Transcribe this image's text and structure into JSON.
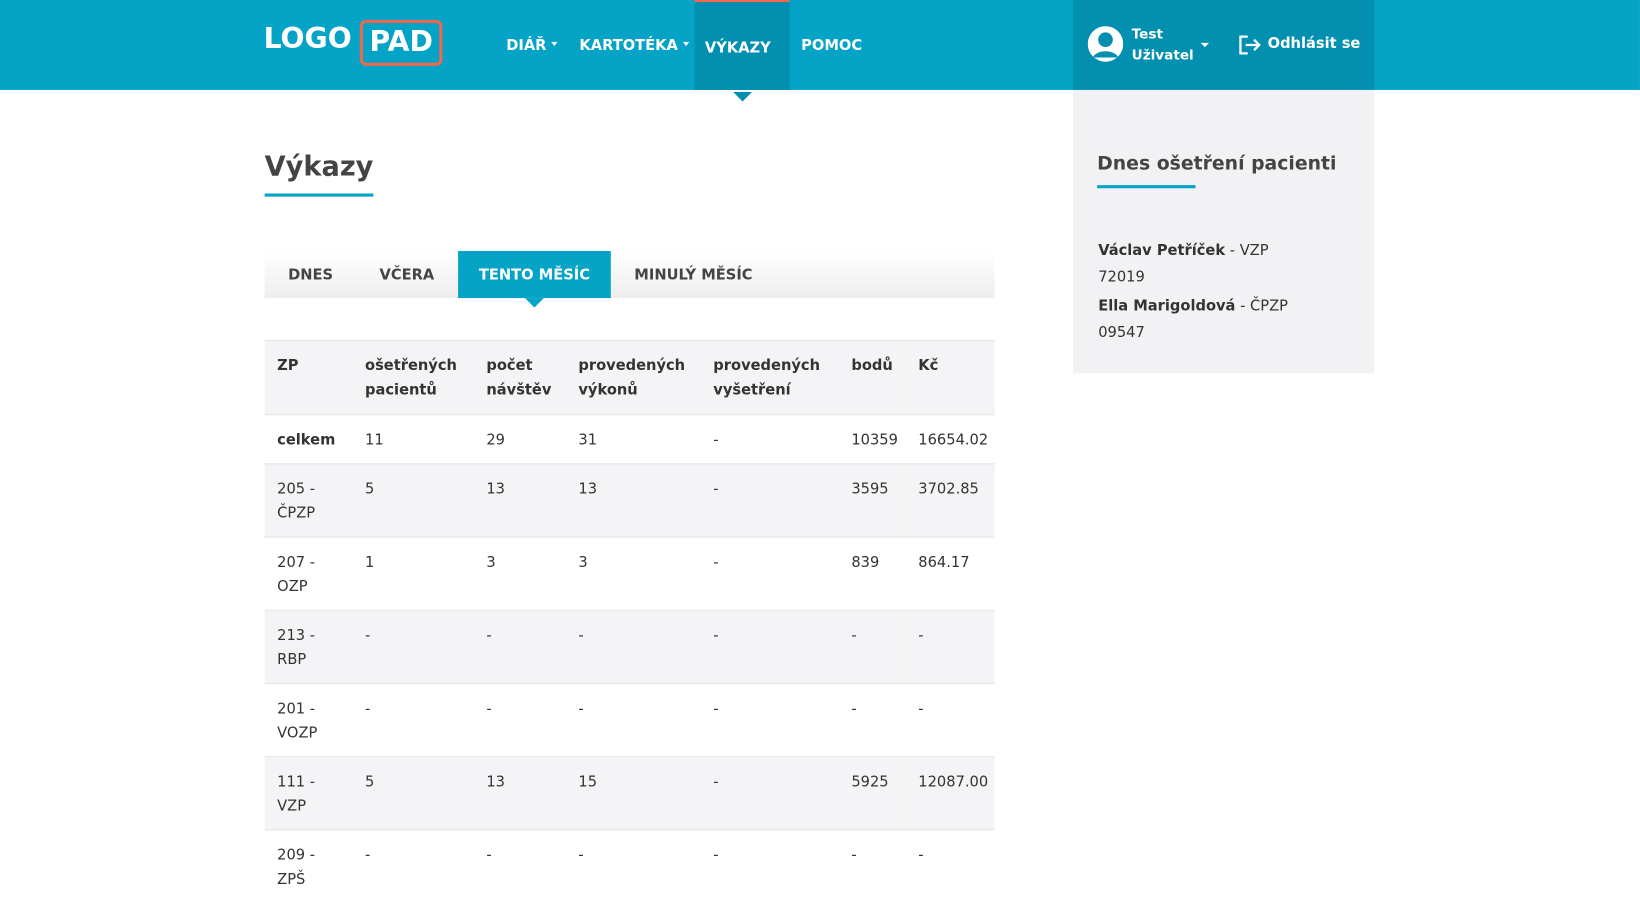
{
  "header": {
    "logo": [
      "LOGO",
      "PAD"
    ],
    "nav": [
      "DIÁŘ",
      "KARTOTÉKA",
      "VÝKAZY",
      "POMOC"
    ],
    "user": [
      "Test",
      "Uživatel"
    ],
    "logout": "Odhlásit se"
  },
  "page": {
    "title": "Výkazy",
    "tabs": [
      "DNES",
      "VČERA",
      "TENTO MĚSÍC",
      "MINULÝ MĚSÍC"
    ]
  },
  "table": {
    "headers": [
      "ZP",
      "ošetřených pacientů",
      "počet návštěv",
      "provedených výkonů",
      "provedených vyšetření",
      "bodů",
      "Kč"
    ],
    "rows": [
      [
        "celkem",
        "11",
        "29",
        "31",
        "-",
        "10359",
        "16654.02"
      ],
      [
        "205 - ČPZP",
        "5",
        "13",
        "13",
        "-",
        "3595",
        "3702.85"
      ],
      [
        "207 - OZP",
        "1",
        "3",
        "3",
        "-",
        "839",
        "864.17"
      ],
      [
        "213 - RBP",
        "-",
        "-",
        "-",
        "-",
        "-",
        "-"
      ],
      [
        "201 - VOZP",
        "-",
        "-",
        "-",
        "-",
        "-",
        "-"
      ],
      [
        "111 - VZP",
        "5",
        "13",
        "15",
        "-",
        "5925",
        "12087.00"
      ],
      [
        "209 - ZPŠ",
        "-",
        "-",
        "-",
        "-",
        "-",
        "-"
      ]
    ]
  },
  "sidebar": {
    "title": "Dnes ošetření pacienti",
    "patients": [
      {
        "name": "Václav Petříček",
        "detail": "- VZP",
        "code": "72019"
      },
      {
        "name": "Ella Marigoldová",
        "detail": "- ČPZP",
        "code": "09547"
      }
    ]
  }
}
